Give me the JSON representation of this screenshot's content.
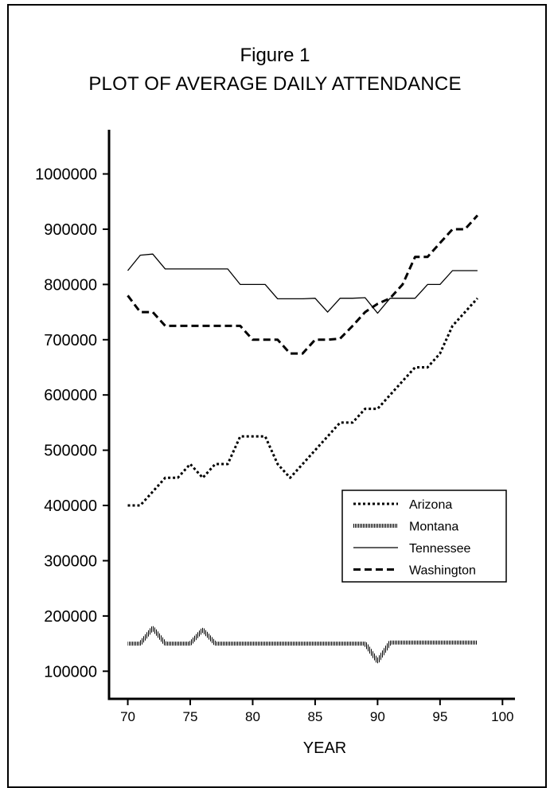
{
  "header": {
    "figure_label": "Figure 1",
    "title": "PLOT OF AVERAGE DAILY ATTENDANCE"
  },
  "chart_data": {
    "type": "line",
    "title": "PLOT OF AVERAGE DAILY ATTENDANCE",
    "xlabel": "YEAR",
    "ylabel": "",
    "xlim": [
      68.5,
      101
    ],
    "ylim": [
      50000,
      1080000
    ],
    "x_ticks": [
      70,
      75,
      80,
      85,
      90,
      95,
      100
    ],
    "y_ticks": [
      100000,
      200000,
      300000,
      400000,
      500000,
      600000,
      700000,
      800000,
      900000,
      1000000
    ],
    "legend_position": "right-middle",
    "grid": false,
    "x": [
      70,
      71,
      72,
      73,
      74,
      75,
      76,
      77,
      78,
      79,
      80,
      81,
      82,
      83,
      84,
      85,
      86,
      87,
      88,
      89,
      90,
      91,
      92,
      93,
      94,
      95,
      96,
      97,
      98
    ],
    "series": [
      {
        "name": "Arizona",
        "style": "dotted",
        "values": [
          400000,
          400000,
          425000,
          450000,
          450000,
          475000,
          450000,
          475000,
          475000,
          525000,
          525000,
          525000,
          475000,
          450000,
          475000,
          500000,
          525000,
          550000,
          550000,
          575000,
          575000,
          600000,
          625000,
          650000,
          650000,
          675000,
          725000,
          750000,
          775000
        ]
      },
      {
        "name": "Montana",
        "style": "hatched",
        "values": [
          150000,
          150000,
          178000,
          150000,
          150000,
          150000,
          175000,
          150000,
          150000,
          150000,
          150000,
          150000,
          150000,
          150000,
          150000,
          150000,
          150000,
          150000,
          150000,
          150000,
          118000,
          152000,
          152000,
          152000,
          152000,
          152000,
          152000,
          152000,
          152000
        ]
      },
      {
        "name": "Tennessee",
        "style": "solid",
        "values": [
          825000,
          853000,
          855000,
          828000,
          828000,
          828000,
          828000,
          828000,
          828000,
          800000,
          800000,
          800000,
          774000,
          774000,
          774000,
          775000,
          750000,
          775000,
          775000,
          776000,
          748000,
          775000,
          775000,
          775000,
          800000,
          800000,
          825000,
          825000,
          825000
        ]
      },
      {
        "name": "Washington",
        "style": "dashed",
        "values": [
          780000,
          750000,
          750000,
          725000,
          725000,
          725000,
          725000,
          725000,
          725000,
          725000,
          700000,
          700000,
          700000,
          675000,
          675000,
          700000,
          700000,
          702000,
          725000,
          750000,
          765000,
          775000,
          800000,
          850000,
          850000,
          875000,
          900000,
          900000,
          925000
        ]
      }
    ]
  }
}
